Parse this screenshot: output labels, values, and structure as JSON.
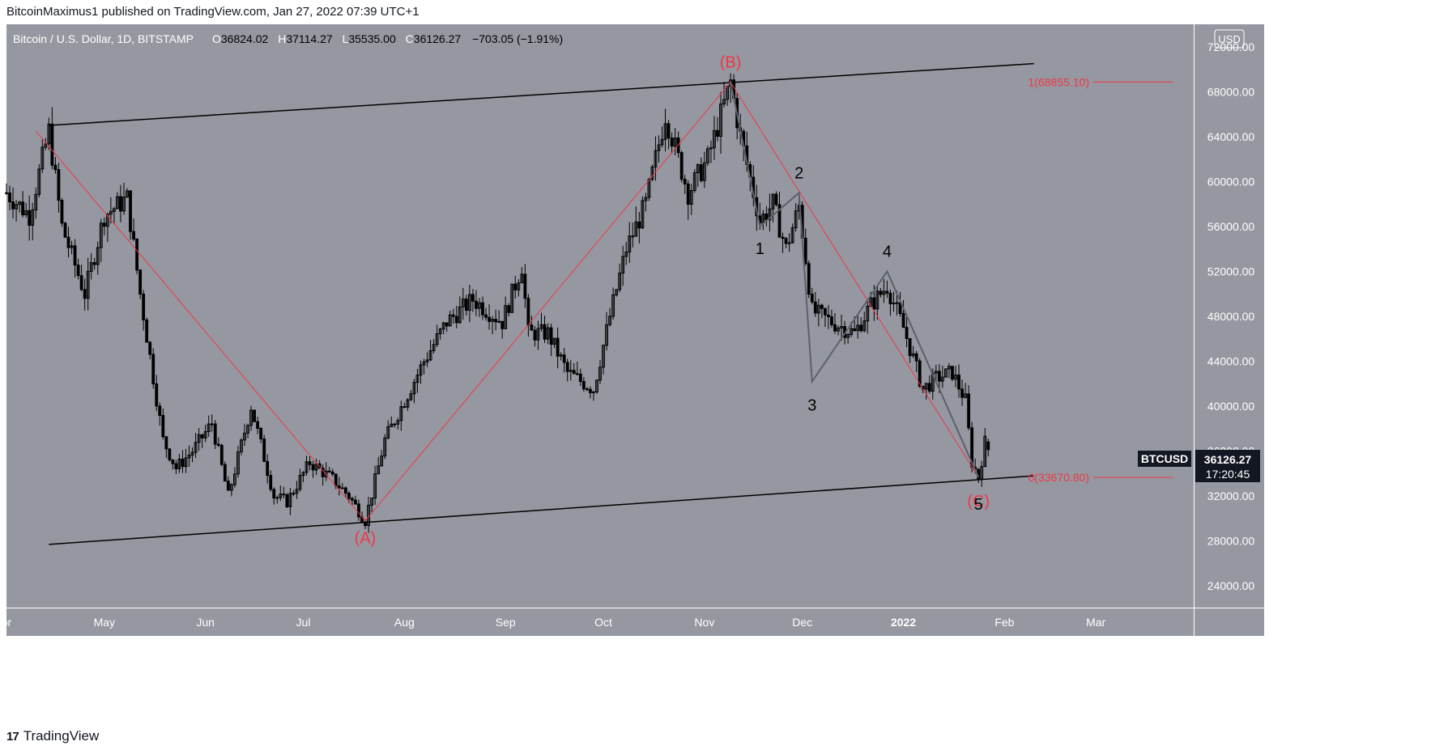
{
  "header": {
    "publisher_line": "BitcoinMaximus1 published on TradingView.com, Jan 27, 2022 07:39 UTC+1"
  },
  "legend": {
    "symbol": "Bitcoin / U.S. Dollar, 1D, BITSTAMP",
    "o_label": "O",
    "o_value": "36824.02",
    "h_label": "H",
    "h_value": "37114.27",
    "l_label": "L",
    "l_value": "35535.00",
    "c_label": "C",
    "c_value": "36126.27",
    "change": "−703.05 (−1.91%)"
  },
  "currency_button": "USD",
  "last_price": {
    "ticker": "BTCUSD",
    "price": "36126.27",
    "countdown": "17:20:45"
  },
  "fib_labels": {
    "top": "1(68855.10)",
    "bottom": "0(33670.80)"
  },
  "wave_labels": {
    "A": "(A)",
    "B": "(B)",
    "C": "(C)",
    "w1": "1",
    "w2": "2",
    "w3": "3",
    "w4": "4",
    "w5": "5"
  },
  "branding": {
    "logo": "17",
    "name": "TradingView"
  },
  "colors": {
    "plot_bg": "#9598a1",
    "candle": "#000000",
    "fib_red": "#f23645",
    "channel": "#000000",
    "wave_line": "#5d606b"
  },
  "chart_data": {
    "type": "candlestick",
    "instrument": "Bitcoin / U.S. Dollar",
    "interval": "1D",
    "exchange": "BITSTAMP",
    "ylim": [
      22000,
      74000
    ],
    "y_ticks": [
      24000,
      28000,
      32000,
      36000,
      40000,
      44000,
      48000,
      52000,
      56000,
      60000,
      64000,
      68000,
      72000
    ],
    "y_tick_labels": [
      "24000.00",
      "28000.00",
      "32000.00",
      "36000.00",
      "40000.00",
      "44000.00",
      "48000.00",
      "52000.00",
      "56000.00",
      "60000.00",
      "64000.00",
      "68000.00",
      "72000.00"
    ],
    "x_range": [
      "2021-04-01",
      "2022-03-31"
    ],
    "x_ticks": [
      {
        "label": "pr",
        "date": "2021-04-01"
      },
      {
        "label": "May",
        "date": "2021-05-01"
      },
      {
        "label": "Jun",
        "date": "2021-06-01"
      },
      {
        "label": "Jul",
        "date": "2021-07-01"
      },
      {
        "label": "Aug",
        "date": "2021-08-01"
      },
      {
        "label": "Sep",
        "date": "2021-09-01"
      },
      {
        "label": "Oct",
        "date": "2021-10-01"
      },
      {
        "label": "Nov",
        "date": "2021-11-01"
      },
      {
        "label": "Dec",
        "date": "2021-12-01"
      },
      {
        "label": "2022",
        "date": "2022-01-01"
      },
      {
        "label": "Feb",
        "date": "2022-02-01"
      },
      {
        "label": "Mar",
        "date": "2022-03-01"
      }
    ],
    "price_path": [
      [
        "2021-04-01",
        59000
      ],
      [
        "2021-04-08",
        57000
      ],
      [
        "2021-04-14",
        64500
      ],
      [
        "2021-04-18",
        56000
      ],
      [
        "2021-04-25",
        50000
      ],
      [
        "2021-05-01",
        57000
      ],
      [
        "2021-05-08",
        58500
      ],
      [
        "2021-05-12",
        50000
      ],
      [
        "2021-05-19",
        37000
      ],
      [
        "2021-05-23",
        34500
      ],
      [
        "2021-05-28",
        36000
      ],
      [
        "2021-06-03",
        38500
      ],
      [
        "2021-06-08",
        32000
      ],
      [
        "2021-06-15",
        40000
      ],
      [
        "2021-06-22",
        32000
      ],
      [
        "2021-06-26",
        31500
      ],
      [
        "2021-07-03",
        35000
      ],
      [
        "2021-07-10",
        33500
      ],
      [
        "2021-07-15",
        32000
      ],
      [
        "2021-07-20",
        29800
      ],
      [
        "2021-07-26",
        37000
      ],
      [
        "2021-08-01",
        40500
      ],
      [
        "2021-08-07",
        44000
      ],
      [
        "2021-08-14",
        47500
      ],
      [
        "2021-08-22",
        49500
      ],
      [
        "2021-08-31",
        47500
      ],
      [
        "2021-09-06",
        52500
      ],
      [
        "2021-09-08",
        46500
      ],
      [
        "2021-09-14",
        46500
      ],
      [
        "2021-09-20",
        43000
      ],
      [
        "2021-09-28",
        41500
      ],
      [
        "2021-10-03",
        48000
      ],
      [
        "2021-10-08",
        54000
      ],
      [
        "2021-10-14",
        58000
      ],
      [
        "2021-10-20",
        66000
      ],
      [
        "2021-10-27",
        59000
      ],
      [
        "2021-11-02",
        62000
      ],
      [
        "2021-11-09",
        68855
      ],
      [
        "2021-11-12",
        64000
      ],
      [
        "2021-11-18",
        56500
      ],
      [
        "2021-11-22",
        58000
      ],
      [
        "2021-11-26",
        54000
      ],
      [
        "2021-11-30",
        57800
      ],
      [
        "2021-12-04",
        48500
      ],
      [
        "2021-12-10",
        47500
      ],
      [
        "2021-12-17",
        46500
      ],
      [
        "2021-12-22",
        49000
      ],
      [
        "2021-12-27",
        50700
      ],
      [
        "2022-01-01",
        47000
      ],
      [
        "2022-01-07",
        41500
      ],
      [
        "2022-01-11",
        42500
      ],
      [
        "2022-01-16",
        43000
      ],
      [
        "2022-01-20",
        40500
      ],
      [
        "2022-01-22",
        35000
      ],
      [
        "2022-01-24",
        33670
      ],
      [
        "2022-01-26",
        36800
      ],
      [
        "2022-01-27",
        36126
      ]
    ],
    "last": {
      "date": "2022-01-27",
      "open": 36824.02,
      "high": 37114.27,
      "low": 35535.0,
      "close": 36126.27
    },
    "channel_lines": [
      {
        "from": [
          "2021-04-14",
          65000
        ],
        "to": [
          "2022-02-10",
          70500
        ]
      },
      {
        "from": [
          "2021-04-14",
          27700
        ],
        "to": [
          "2022-02-10",
          33800
        ]
      }
    ],
    "abc_path": [
      [
        "2021-04-10",
        64500
      ],
      [
        "2021-07-20",
        29800
      ],
      [
        "2021-11-09",
        68855
      ],
      [
        "2022-01-24",
        33670
      ]
    ],
    "wave_path": [
      [
        "2021-11-09",
        68855
      ],
      [
        "2021-11-18",
        56000
      ],
      [
        "2021-11-30",
        59000
      ],
      [
        "2021-12-04",
        42200
      ],
      [
        "2021-12-27",
        52000
      ],
      [
        "2022-01-24",
        33670
      ]
    ],
    "fib_levels": [
      {
        "ratio": 1,
        "value": 68855.1
      },
      {
        "ratio": 0,
        "value": 33670.8
      }
    ]
  }
}
